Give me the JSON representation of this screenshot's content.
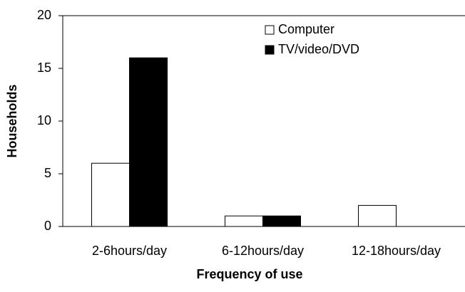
{
  "chart_data": {
    "type": "bar",
    "x_label": "Frequency of use",
    "y_label": "Households",
    "categories": [
      "2-6hours/day",
      "6-12hours/day",
      "12-18hours/day"
    ],
    "series": [
      {
        "name": "Computer",
        "color": "#ffffff",
        "values": [
          6,
          1,
          2
        ]
      },
      {
        "name": "TV/video/DVD",
        "color": "#000000",
        "values": [
          16,
          1,
          0
        ]
      }
    ],
    "ylim": [
      0,
      20
    ],
    "yticks": [
      0,
      5,
      10,
      15,
      20
    ],
    "grid": false,
    "legend": "upper right"
  }
}
